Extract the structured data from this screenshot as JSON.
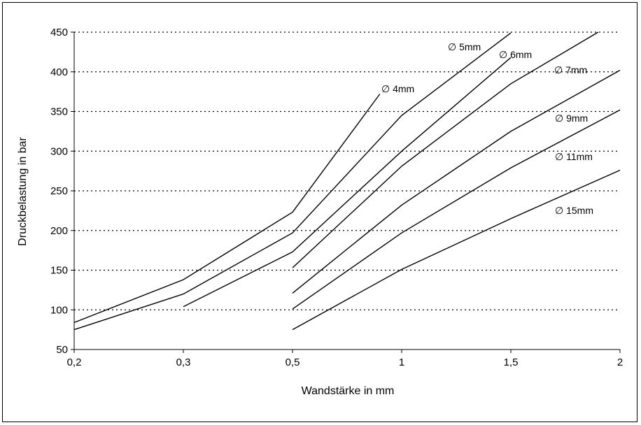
{
  "chart_data": {
    "type": "line",
    "title": "",
    "xlabel": "Wandstärke in mm",
    "ylabel": "Druckbelastung in bar",
    "x_categories": [
      "0,2",
      "0,3",
      "0,5",
      "1",
      "1,5",
      "2"
    ],
    "ylim": [
      50,
      450
    ],
    "yticks": [
      50,
      100,
      150,
      200,
      250,
      300,
      350,
      400,
      450
    ],
    "ytick_labels": [
      "50",
      "100",
      "150",
      "200",
      "250",
      "300",
      "350",
      "400",
      "450"
    ],
    "grid": "horizontal dotted",
    "series": [
      {
        "name": "∅ 4mm",
        "points": [
          [
            0.2,
            84
          ],
          [
            0.3,
            138
          ],
          [
            0.5,
            223
          ],
          [
            0.9,
            372
          ]
        ]
      },
      {
        "name": "∅ 5mm",
        "points": [
          [
            0.2,
            75
          ],
          [
            0.3,
            120
          ],
          [
            0.5,
            197
          ],
          [
            1.0,
            345
          ],
          [
            1.5,
            449
          ]
        ]
      },
      {
        "name": "∅ 6mm",
        "points": [
          [
            0.3,
            104
          ],
          [
            0.5,
            173
          ],
          [
            1.0,
            300
          ],
          [
            1.5,
            418
          ]
        ]
      },
      {
        "name": "∅ 7mm",
        "points": [
          [
            0.5,
            153
          ],
          [
            1.0,
            281
          ],
          [
            1.5,
            385
          ],
          [
            1.9,
            450
          ]
        ]
      },
      {
        "name": "∅ 9mm",
        "points": [
          [
            0.5,
            121
          ],
          [
            1.0,
            232
          ],
          [
            1.5,
            325
          ],
          [
            2.0,
            402
          ]
        ]
      },
      {
        "name": "∅ 11mm",
        "points": [
          [
            0.5,
            101
          ],
          [
            1.0,
            197
          ],
          [
            1.5,
            279
          ],
          [
            2.0,
            352
          ]
        ]
      },
      {
        "name": "∅ 15mm",
        "points": [
          [
            0.5,
            75
          ],
          [
            1.0,
            151
          ],
          [
            1.5,
            215
          ],
          [
            2.0,
            276
          ]
        ]
      }
    ]
  }
}
